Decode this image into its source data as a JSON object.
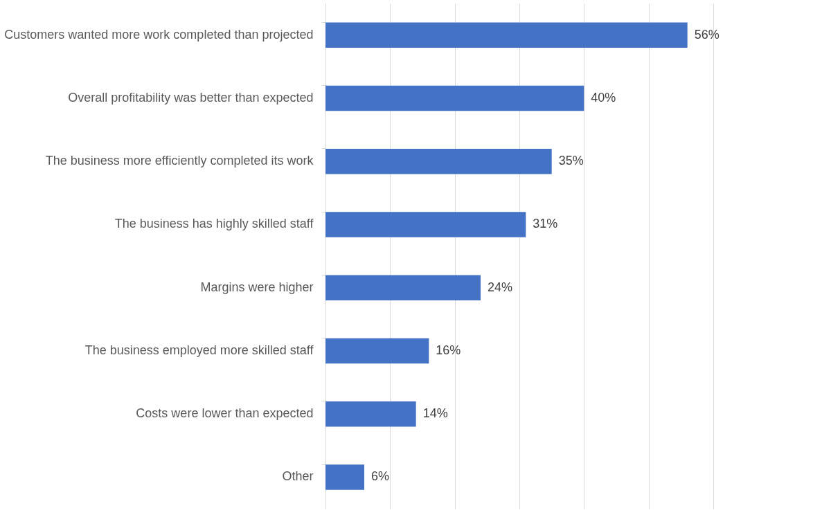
{
  "chart_data": {
    "type": "bar",
    "orientation": "horizontal",
    "color": "#4472c4",
    "categories": [
      "Customers wanted more work completed than projected",
      "Overall profitability was better than expected",
      "The business more efficiently completed its work",
      "The business has highly skilled staff",
      "Margins were higher",
      "The business employed more skilled staff",
      "Costs were lower than expected",
      "Other"
    ],
    "values": [
      56,
      40,
      35,
      31,
      24,
      16,
      14,
      6
    ],
    "value_labels": [
      "56%",
      "40%",
      "35%",
      "31%",
      "24%",
      "16%",
      "14%",
      "6%"
    ],
    "xlim": [
      0,
      60
    ],
    "xticks": [
      {
        "value": 0,
        "label": null
      },
      {
        "value": 10,
        "label": null
      },
      {
        "value": 20,
        "label": null
      },
      {
        "value": 30,
        "label": null
      },
      {
        "value": 40,
        "label": null
      },
      {
        "value": 50,
        "label": null
      },
      {
        "value": 60,
        "label": null
      }
    ],
    "grid": "x",
    "tick_labels": "y"
  }
}
